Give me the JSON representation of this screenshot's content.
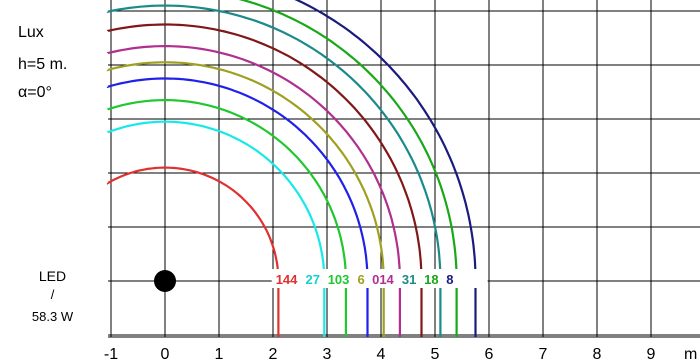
{
  "legend": {
    "unit": "Lux",
    "height": "h=5 m.",
    "tilt": "α=0°",
    "fixture_type": "LED",
    "separator": "/",
    "power": "58.3 W"
  },
  "chart_data": {
    "type": "isolux-contour",
    "x_unit": "m",
    "x_ticks": [
      -1,
      0,
      1,
      2,
      3,
      4,
      5,
      6,
      7,
      8,
      9
    ],
    "y_ticks": [
      0,
      1,
      2,
      3,
      4,
      5
    ],
    "xlim": [
      -1,
      9.8
    ],
    "ylim": [
      -0.85,
      4.9
    ],
    "grid": true,
    "luminaire_position": [
      0,
      0
    ],
    "contours": [
      {
        "label": "144",
        "radius": 2.1,
        "color": "#e03030"
      },
      {
        "label": "27",
        "radius": 2.95,
        "color": "#18e8e8"
      },
      {
        "label": "103",
        "radius": 3.35,
        "color": "#20c830"
      },
      {
        "label": "3",
        "radius": 3.75,
        "color": "#2020e8"
      },
      {
        "label": "6",
        "radius": 4.05,
        "color": "#a0a020"
      },
      {
        "label": "0",
        "radius": 4.35,
        "color": "#b03090"
      },
      {
        "label": "14",
        "radius": 4.75,
        "color": "#801818"
      },
      {
        "label": "31",
        "radius": 5.1,
        "color": "#1a8a8a"
      },
      {
        "label": "18",
        "radius": 5.4,
        "color": "#18a818"
      },
      {
        "label": "8",
        "radius": 5.75,
        "color": "#1a1a80"
      }
    ],
    "label_row": [
      "144",
      "27",
      "103",
      "6",
      "014",
      "31",
      "18",
      "8"
    ],
    "label_row_colors": [
      "#e03030",
      "#18d0d0",
      "#20c830",
      "#a0a020",
      "#b03090",
      "#1a8a8a",
      "#18a818",
      "#1a1a80"
    ]
  }
}
